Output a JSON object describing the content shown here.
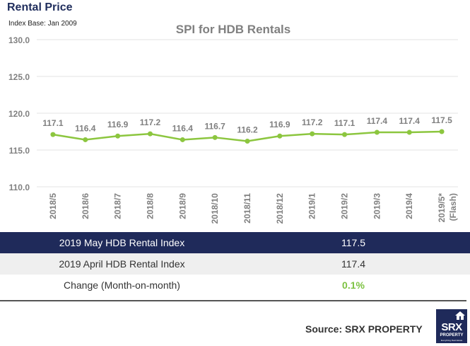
{
  "header": {
    "title": "Rental Price",
    "index_base": "Index Base: Jan 2009"
  },
  "chart_data": {
    "type": "line",
    "title": "SPI for HDB Rentals",
    "categories": [
      "2018/5",
      "2018/6",
      "2018/7",
      "2018/8",
      "2018/9",
      "2018/10",
      "2018/11",
      "2018/12",
      "2019/1",
      "2019/2",
      "2019/3",
      "2019/4",
      "2019/5*"
    ],
    "category_note": "(Flash)",
    "series": [
      {
        "values": [
          117.1,
          116.4,
          116.9,
          117.2,
          116.4,
          116.7,
          116.2,
          116.9,
          117.2,
          117.1,
          117.4,
          117.4,
          117.5
        ],
        "color": "#8cc63f"
      }
    ],
    "data_labels": [
      "117.1",
      "116.4",
      "116.9",
      "117.2",
      "116.4",
      "116.7",
      "116.2",
      "116.9",
      "117.2",
      "117.1",
      "117.4",
      "117.4",
      "117.5"
    ],
    "ylim": [
      110.0,
      130.0
    ],
    "yticks": [
      "110.0",
      "115.0",
      "120.0",
      "125.0",
      "130.0"
    ],
    "grid": true,
    "legend": "none"
  },
  "summary": {
    "rows": [
      {
        "label": "2019 May HDB Rental Index",
        "value": "117.5"
      },
      {
        "label": "2019 April HDB Rental Index",
        "value": "117.4"
      },
      {
        "label": "Change (Month-on-month)",
        "value": "0.1%"
      }
    ]
  },
  "footer": {
    "source": "Source:  SRX PROPERTY",
    "logo_main": "SRX",
    "logo_sub": "PROPERTY",
    "logo_tagline": "Everything Real Estate"
  },
  "colors": {
    "navy": "#1f2a5a",
    "line_green": "#8cc63f",
    "change_green": "#7dc242"
  }
}
